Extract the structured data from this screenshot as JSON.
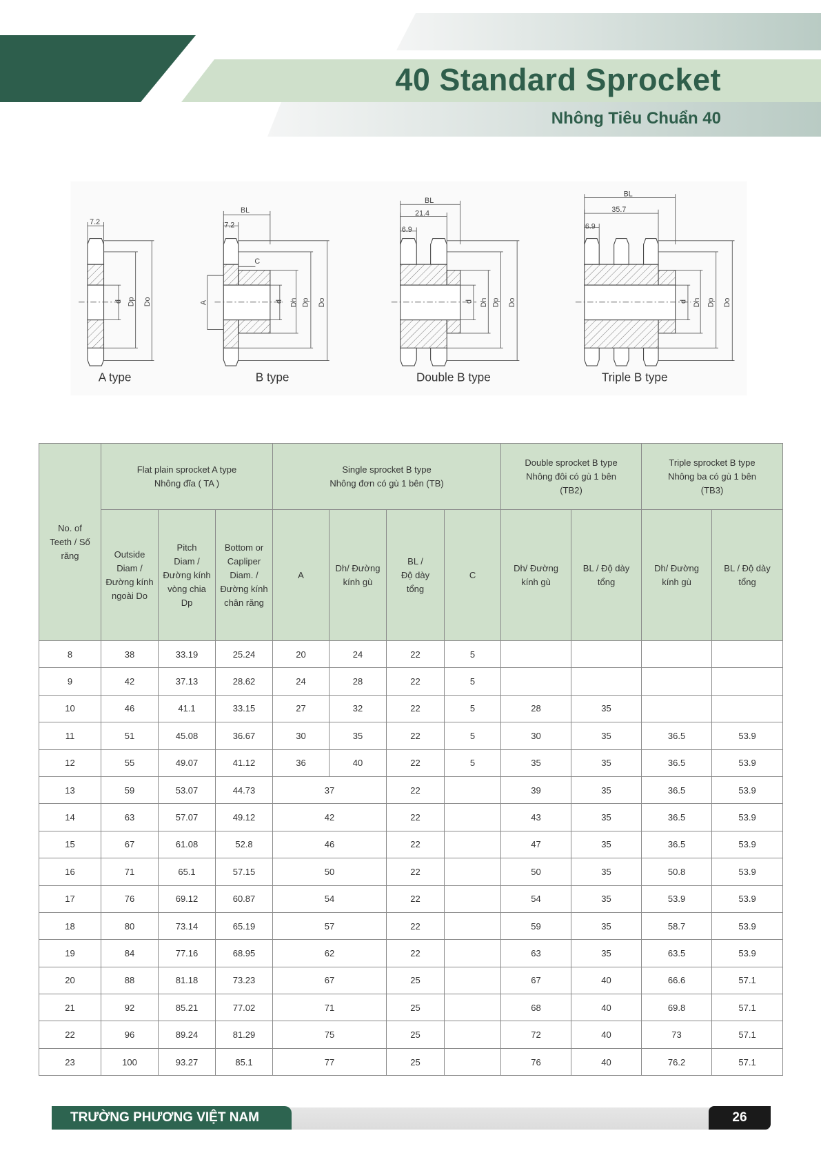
{
  "header": {
    "title": "40 Standard Sprocket",
    "subtitle": "Nhông Tiêu Chuẩn 40",
    "colors": {
      "dark_green": "#2d5e4c",
      "light_green": "#cfe0cb",
      "title_text": "#2f5e4b"
    }
  },
  "diagrams": {
    "labels": {
      "a_type": "A type",
      "b_type": "B type",
      "double_b_type": "Double B type",
      "triple_b_type": "Triple B type"
    },
    "dims": {
      "tooth_width": "7.2",
      "bl": "BL",
      "c": "C",
      "a": "A",
      "d": "d",
      "dh": "Dh",
      "dp": "Dp",
      "do": "Do",
      "double_span": "21.4",
      "double_tooth": "6.9",
      "triple_span": "35.7",
      "triple_tooth": "6.9"
    }
  },
  "table": {
    "col_teeth": "No. of\nTeeth / Số\nrăng",
    "groups": {
      "a_type": "Flat plain sprocket A type\nNhông đĩa ( TA )",
      "b_type": "Single sprocket B type\nNhông đơn có gù 1 bên (TB)",
      "double": "Double sprocket B type\nNhông đôi có gù 1 bên\n(TB2)",
      "triple": "Triple sprocket B type\nNhông ba có gù 1 bên\n(TB3)"
    },
    "sub": {
      "od": "Outside\nDiam /\nĐường kính\nngoài Do",
      "dp": "Pitch\nDiam /\nĐường kính\nvòng chia\nDp",
      "bd": "Bottom or\nCapliper\nDiam. /\nĐường kính\nchân răng",
      "a": "A",
      "dh": "Dh/ Đường\nkính gù",
      "bl": "BL /\nĐộ dày\ntổng",
      "c": "C",
      "dh2": "Dh/ Đường\nkính gù",
      "bl2": "BL / Độ dày\ntổng",
      "dh3": "Dh/ Đường\nkính gù",
      "bl3": "BL / Độ dày\ntổng"
    },
    "rows": [
      {
        "teeth": "8",
        "od": "38",
        "dp": "33.19",
        "bd": "25.24",
        "a": "20",
        "dh": "24",
        "bl": "22",
        "c": "5",
        "dh2": "",
        "bl2": "",
        "dh3": "",
        "bl3": ""
      },
      {
        "teeth": "9",
        "od": "42",
        "dp": "37.13",
        "bd": "28.62",
        "a": "24",
        "dh": "28",
        "bl": "22",
        "c": "5",
        "dh2": "",
        "bl2": "",
        "dh3": "",
        "bl3": ""
      },
      {
        "teeth": "10",
        "od": "46",
        "dp": "41.1",
        "bd": "33.15",
        "a": "27",
        "dh": "32",
        "bl": "22",
        "c": "5",
        "dh2": "28",
        "bl2": "35",
        "dh3": "",
        "bl3": ""
      },
      {
        "teeth": "11",
        "od": "51",
        "dp": "45.08",
        "bd": "36.67",
        "a": "30",
        "dh": "35",
        "bl": "22",
        "c": "5",
        "dh2": "30",
        "bl2": "35",
        "dh3": "36.5",
        "bl3": "53.9"
      },
      {
        "teeth": "12",
        "od": "55",
        "dp": "49.07",
        "bd": "41.12",
        "a": "36",
        "dh": "40",
        "bl": "22",
        "c": "5",
        "dh2": "35",
        "bl2": "35",
        "dh3": "36.5",
        "bl3": "53.9"
      },
      {
        "teeth": "13",
        "od": "59",
        "dp": "53.07",
        "bd": "44.73",
        "a_dh": "37",
        "bl": "22",
        "c": "",
        "dh2": "39",
        "bl2": "35",
        "dh3": "36.5",
        "bl3": "53.9"
      },
      {
        "teeth": "14",
        "od": "63",
        "dp": "57.07",
        "bd": "49.12",
        "a_dh": "42",
        "bl": "22",
        "c": "",
        "dh2": "43",
        "bl2": "35",
        "dh3": "36.5",
        "bl3": "53.9"
      },
      {
        "teeth": "15",
        "od": "67",
        "dp": "61.08",
        "bd": "52.8",
        "a_dh": "46",
        "bl": "22",
        "c": "",
        "dh2": "47",
        "bl2": "35",
        "dh3": "36.5",
        "bl3": "53.9"
      },
      {
        "teeth": "16",
        "od": "71",
        "dp": "65.1",
        "bd": "57.15",
        "a_dh": "50",
        "bl": "22",
        "c": "",
        "dh2": "50",
        "bl2": "35",
        "dh3": "50.8",
        "bl3": "53.9"
      },
      {
        "teeth": "17",
        "od": "76",
        "dp": "69.12",
        "bd": "60.87",
        "a_dh": "54",
        "bl": "22",
        "c": "",
        "dh2": "54",
        "bl2": "35",
        "dh3": "53.9",
        "bl3": "53.9"
      },
      {
        "teeth": "18",
        "od": "80",
        "dp": "73.14",
        "bd": "65.19",
        "a_dh": "57",
        "bl": "22",
        "c": "",
        "dh2": "59",
        "bl2": "35",
        "dh3": "58.7",
        "bl3": "53.9"
      },
      {
        "teeth": "19",
        "od": "84",
        "dp": "77.16",
        "bd": "68.95",
        "a_dh": "62",
        "bl": "22",
        "c": "",
        "dh2": "63",
        "bl2": "35",
        "dh3": "63.5",
        "bl3": "53.9"
      },
      {
        "teeth": "20",
        "od": "88",
        "dp": "81.18",
        "bd": "73.23",
        "a_dh": "67",
        "bl": "25",
        "c": "",
        "dh2": "67",
        "bl2": "40",
        "dh3": "66.6",
        "bl3": "57.1"
      },
      {
        "teeth": "21",
        "od": "92",
        "dp": "85.21",
        "bd": "77.02",
        "a_dh": "71",
        "bl": "25",
        "c": "",
        "dh2": "68",
        "bl2": "40",
        "dh3": "69.8",
        "bl3": "57.1"
      },
      {
        "teeth": "22",
        "od": "96",
        "dp": "89.24",
        "bd": "81.29",
        "a_dh": "75",
        "bl": "25",
        "c": "",
        "dh2": "72",
        "bl2": "40",
        "dh3": "73",
        "bl3": "57.1"
      },
      {
        "teeth": "23",
        "od": "100",
        "dp": "93.27",
        "bd": "85.1",
        "a_dh": "77",
        "bl": "25",
        "c": "",
        "dh2": "76",
        "bl2": "40",
        "dh3": "76.2",
        "bl3": "57.1"
      }
    ]
  },
  "footer": {
    "brand": "TRƯỜNG PHƯƠNG VIỆT NAM",
    "page": "26"
  }
}
